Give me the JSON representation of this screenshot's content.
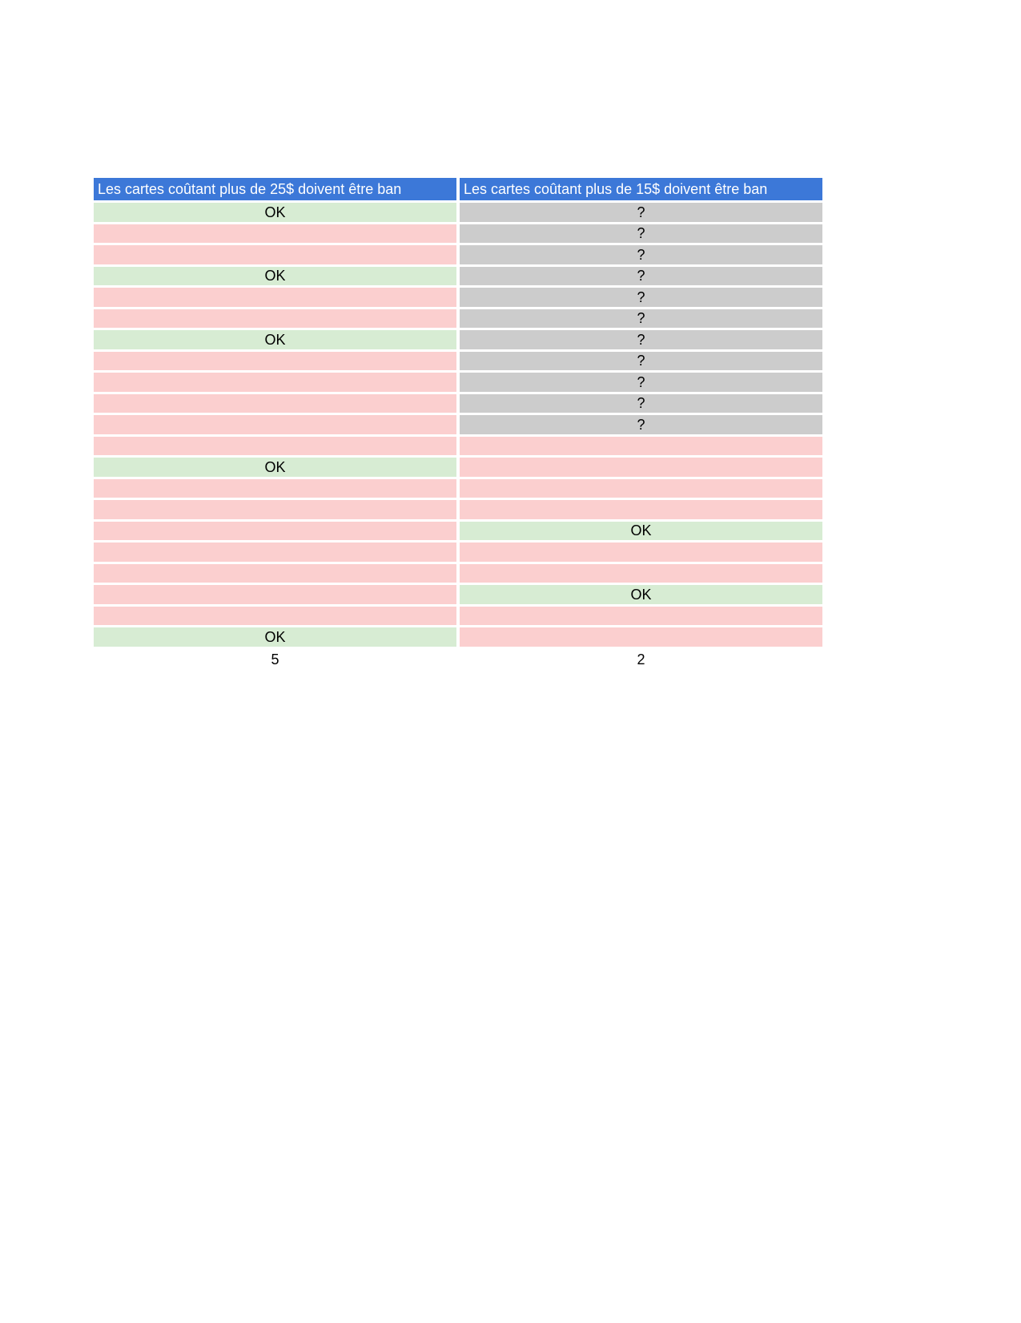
{
  "page": {
    "background": "#ffffff"
  },
  "table": {
    "colors": {
      "header_bg": "#3c78d8",
      "header_text": "#ffffff",
      "ok_bg": "#d7ecd3",
      "unknown_bg": "#cccccc",
      "empty_bg": "#fbcfcf",
      "cell_text": "#000000"
    },
    "columns": [
      {
        "header": "Les cartes coûtant plus de 25$ doivent être ban",
        "cells": [
          "OK",
          "",
          "",
          "OK",
          "",
          "",
          "OK",
          "",
          "",
          "",
          "",
          "",
          "OK",
          "",
          "",
          "",
          "",
          "",
          "",
          "",
          "OK"
        ],
        "total": "5"
      },
      {
        "header": "Les cartes coûtant plus de 15$ doivent être ban",
        "cells": [
          "?",
          "?",
          "?",
          "?",
          "?",
          "?",
          "?",
          "?",
          "?",
          "?",
          "?",
          "",
          "",
          "",
          "",
          "OK",
          "",
          "",
          "OK",
          "",
          ""
        ],
        "total": "2"
      }
    ]
  }
}
